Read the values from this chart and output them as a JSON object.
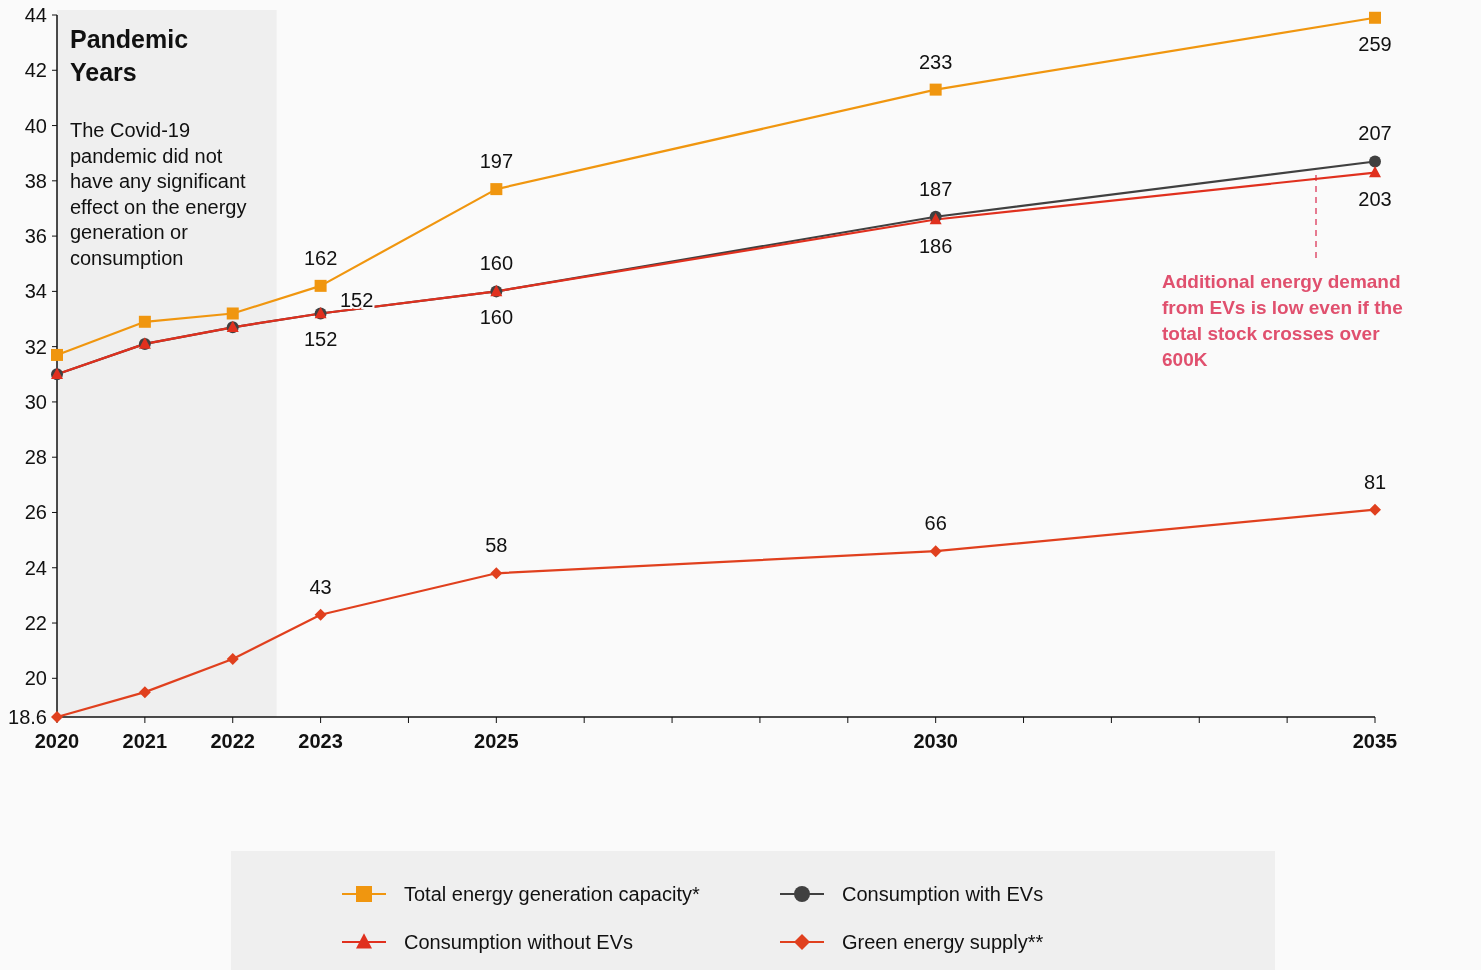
{
  "chart_data": {
    "type": "line",
    "x": [
      2020,
      2021,
      2022,
      2023,
      2025,
      2030,
      2035
    ],
    "xlim": [
      2020,
      2035
    ],
    "xticks": [
      2020,
      2021,
      2022,
      2023,
      {
        "value": 2024,
        "label": null
      },
      2025,
      {
        "value": 2026,
        "label": null
      },
      {
        "value": 2027,
        "label": null
      },
      {
        "value": 2028,
        "label": null
      },
      {
        "value": 2029,
        "label": null
      },
      2030,
      {
        "value": 2031,
        "label": null
      },
      {
        "value": 2032,
        "label": null
      },
      {
        "value": 2033,
        "label": null
      },
      {
        "value": 2034,
        "label": null
      },
      2035
    ],
    "ylim": [
      18.6,
      44
    ],
    "yticks": [
      18.6,
      20,
      22,
      24,
      26,
      28,
      30,
      32,
      34,
      36,
      38,
      40,
      42,
      44
    ],
    "y2lim": [
      6,
      260
    ],
    "series": [
      {
        "name": "Total energy generation capacity*",
        "color": "#f0960f",
        "marker": "square",
        "axis": "y2",
        "values": [
          137,
          149,
          152,
          162,
          197,
          233,
          259
        ],
        "value_labels": [
          null,
          null,
          null,
          "162",
          "197",
          "233",
          "259"
        ]
      },
      {
        "name": "Consumption with EVs",
        "color": "#404040",
        "marker": "circle",
        "axis": "y2",
        "values": [
          130,
          141,
          147,
          152,
          160,
          187,
          207
        ],
        "value_labels": [
          null,
          null,
          null,
          "152",
          "160",
          "187",
          "207"
        ]
      },
      {
        "name": "Consumption without EVs",
        "color": "#e0301e",
        "marker": "triangle",
        "axis": "y2",
        "values": [
          130,
          141,
          147,
          152,
          160,
          186,
          203
        ],
        "value_labels": [
          null,
          null,
          null,
          "152",
          "160",
          "186",
          "203"
        ]
      },
      {
        "name": "Green energy supply**",
        "color": "#e0401e",
        "marker": "diamond",
        "axis": "y2",
        "values": [
          6,
          15,
          27,
          43,
          58,
          66,
          81
        ],
        "value_labels": [
          null,
          null,
          null,
          "43",
          "58",
          "66",
          "81"
        ]
      }
    ],
    "bands": [
      {
        "axis": "x",
        "from": 2020,
        "to": 2022.5,
        "label": "Pandemic Years",
        "color": "#efefef"
      }
    ],
    "annotations": [
      "The Covid-19 pandemic did not have any significant effect on the energy generation or consumption",
      "Additional energy demand from EVs is low even if the total stock crosses over 600K"
    ],
    "legend": "bottom",
    "line_style": "solid"
  }
}
